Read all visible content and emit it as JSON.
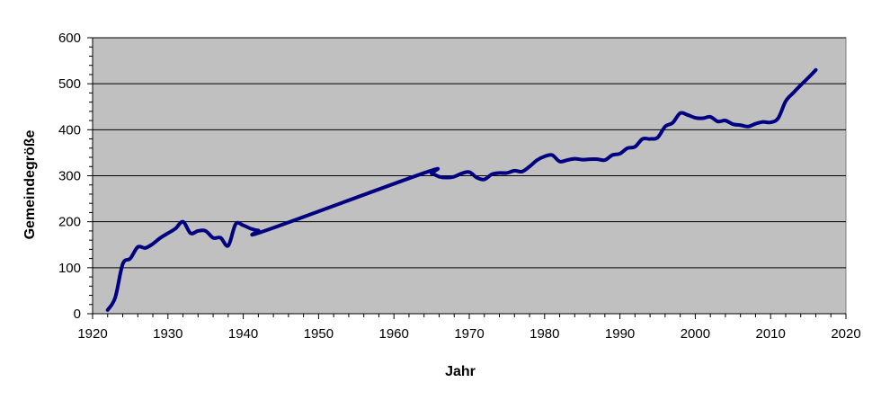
{
  "chart_data": {
    "type": "line",
    "title": "",
    "xlabel": "Jahr",
    "ylabel": "Gemeindegröße",
    "xlim": [
      1920,
      2020
    ],
    "ylim": [
      0,
      600
    ],
    "xticks": [
      "1920",
      "1930",
      "1940",
      "1950",
      "1960",
      "1970",
      "1980",
      "1990",
      "2000",
      "2010",
      "2020"
    ],
    "yticks": [
      "0",
      "100",
      "200",
      "300",
      "400",
      "500",
      "600"
    ],
    "grid": true,
    "legend": "none",
    "colors": {
      "plot_background": "#c0c0c0",
      "line": "#000080",
      "gridline": "#000000"
    },
    "series": [
      {
        "x": [
          1922,
          1923,
          1924,
          1925,
          1926,
          1927,
          1928,
          1929,
          1930,
          1931,
          1932,
          1933,
          1934,
          1935,
          1936,
          1937,
          1938,
          1939,
          1940,
          1941,
          1942,
          1943,
          1964,
          1965,
          1966,
          1967,
          1968,
          1969,
          1970,
          1971,
          1972,
          1973,
          1974,
          1975,
          1976,
          1977,
          1978,
          1979,
          1980,
          1981,
          1982,
          1983,
          1984,
          1985,
          1986,
          1987,
          1988,
          1989,
          1990,
          1991,
          1992,
          1993,
          1994,
          1995,
          1996,
          1997,
          1998,
          1999,
          2000,
          2001,
          2002,
          2003,
          2004,
          2005,
          2006,
          2007,
          2008,
          2009,
          2010,
          2011,
          2012,
          2013,
          2014,
          2015,
          2016
        ],
        "y": [
          8,
          35,
          108,
          120,
          145,
          143,
          152,
          165,
          175,
          185,
          200,
          175,
          180,
          180,
          165,
          165,
          148,
          195,
          192,
          185,
          181,
          181,
          306,
          305,
          298,
          296,
          298,
          305,
          308,
          296,
          292,
          303,
          306,
          306,
          311,
          309,
          320,
          334,
          342,
          345,
          331,
          334,
          337,
          335,
          336,
          336,
          334,
          345,
          348,
          360,
          363,
          380,
          380,
          383,
          407,
          415,
          436,
          432,
          426,
          425,
          428,
          418,
          420,
          412,
          410,
          407,
          413,
          417,
          416,
          425,
          462,
          480,
          497,
          513,
          530
        ]
      }
    ]
  }
}
